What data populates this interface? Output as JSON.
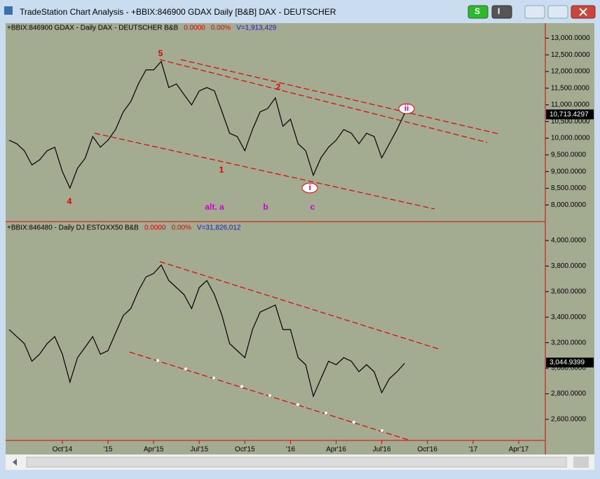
{
  "window": {
    "title": "TradeStation Chart Analysis - +BBIX:846900 GDAX Daily [B&B] DAX - DEUTSCHER",
    "buttons": [
      "S",
      "I"
    ]
  },
  "chart_data": {
    "type": "line",
    "categories": [
      null,
      null,
      null,
      null,
      null,
      null,
      null,
      "Oct'14",
      null,
      null,
      null,
      null,
      null,
      "'15",
      null,
      null,
      null,
      null,
      null,
      "Apr'15",
      null,
      null,
      null,
      null,
      null,
      "Jul'15",
      null,
      null,
      null,
      null,
      null,
      "Oct'15",
      null,
      null,
      null,
      null,
      null,
      "'16",
      null,
      null,
      null,
      null,
      null,
      "Apr'16",
      null,
      null,
      null,
      null,
      null,
      "Jul'16",
      null,
      null,
      null,
      null,
      null,
      "Oct'16",
      null,
      null,
      null,
      null,
      null,
      "'17",
      null,
      null,
      null,
      null,
      null,
      "Apr'17",
      null,
      null,
      null
    ],
    "panels": [
      {
        "symbol": "+BBIX:846900 GDAX - Daily  DAX - DEUTSCHER  B&B",
        "change": "0.0000",
        "change_pct": "0.00%",
        "volume": "V=1,913,429",
        "ylim": [
          7500,
          13450
        ],
        "yticks": [
          {
            "value": 8000,
            "label": "8,000.0000"
          },
          {
            "value": 8500,
            "label": "8,500.0000"
          },
          {
            "value": 9000,
            "label": "9,000.0000"
          },
          {
            "value": 9500,
            "label": "9,500.0000"
          },
          {
            "value": 10000,
            "label": "10,000.0000"
          },
          {
            "value": 10500,
            "label": "10,500.0000"
          },
          {
            "value": 11000,
            "label": "11,000.0000"
          },
          {
            "value": 11500,
            "label": "11,500.0000"
          },
          {
            "value": 12000,
            "label": "12,000.0000"
          },
          {
            "value": 12500,
            "label": "12,500.0000"
          },
          {
            "value": 13000,
            "label": "13,000.0000"
          }
        ],
        "last": {
          "value": 10713.4297,
          "label": "10,713.4297"
        },
        "series": [
          {
            "color": "#000000",
            "values": [
              9941,
              9835,
              9625,
              9200,
              9350,
              9625,
              9730,
              9000,
              8505,
              9100,
              9400,
              10050,
              9730,
              9940,
              10260,
              10790,
              11100,
              11630,
              12050,
              12050,
              12300,
              11520,
              11630,
              11310,
              11000,
              11420,
              11520,
              11420,
              10790,
              10150,
              10050,
              9625,
              10260,
              10790,
              10890,
              11210,
              10360,
              10570,
              9835,
              9625,
              8890,
              9410,
              9730,
              9940,
              10260,
              10150,
              9835,
              10150,
              10050,
              9410,
              9835,
              10260,
              10740,
              null,
              null,
              null,
              null,
              null,
              null,
              null,
              null,
              null,
              null,
              null,
              null,
              null,
              null,
              null,
              null,
              null,
              null
            ]
          }
        ],
        "annotations": [
          {
            "text": "5",
            "color": "#e00000"
          },
          {
            "text": "2",
            "color": "#e00000"
          },
          {
            "text": "1",
            "color": "#e00000"
          },
          {
            "text": "4",
            "color": "#e00000"
          },
          {
            "text": "alt. a",
            "color": "#d000d0"
          },
          {
            "text": "b",
            "color": "#d000d0"
          },
          {
            "text": "c",
            "color": "#d000d0"
          },
          {
            "text": "i",
            "color": "#d000d0"
          },
          {
            "text": "ii",
            "color": "#d000d0"
          }
        ]
      },
      {
        "symbol": "+BBIX:846480 - Daily  DJ ESTOXX50  B&B",
        "change": "0.0000",
        "change_pct": "0.00%",
        "volume": "V=31,826,012",
        "ylim": [
          2435,
          4137
        ],
        "yticks": [
          {
            "value": 2600,
            "label": "2,600.0000"
          },
          {
            "value": 2800,
            "label": "2,800.0000"
          },
          {
            "value": 3000,
            "label": "3,000.0000"
          },
          {
            "value": 3200,
            "label": "3,200.0000"
          },
          {
            "value": 3400,
            "label": "3,400.0000"
          },
          {
            "value": 3600,
            "label": "3,600.0000"
          },
          {
            "value": 3800,
            "label": "3,800.0000"
          },
          {
            "value": 4000,
            "label": "4,000.0000"
          }
        ],
        "last": {
          "value": 3044.9399,
          "label": "3,044.9399"
        },
        "series": [
          {
            "color": "#000000",
            "values": [
              3303,
              3248,
              3193,
              3055,
              3110,
              3193,
              3248,
              3110,
              2891,
              3083,
              3165,
              3248,
              3110,
              3138,
              3275,
              3412,
              3467,
              3605,
              3715,
              3742,
              3808,
              3687,
              3632,
              3577,
              3467,
              3632,
              3687,
              3577,
              3412,
              3193,
              3138,
              3083,
              3303,
              3440,
              3467,
              3495,
              3303,
              3303,
              3083,
              3028,
              2781,
              2918,
              3055,
              3028,
              3083,
              3055,
              2973,
              3028,
              2973,
              2809,
              2918,
              2973,
              3039,
              null,
              null,
              null,
              null,
              null,
              null,
              null,
              null,
              null,
              null,
              null,
              null,
              null,
              null,
              null,
              null,
              null,
              null
            ]
          }
        ],
        "annotations": []
      }
    ]
  }
}
